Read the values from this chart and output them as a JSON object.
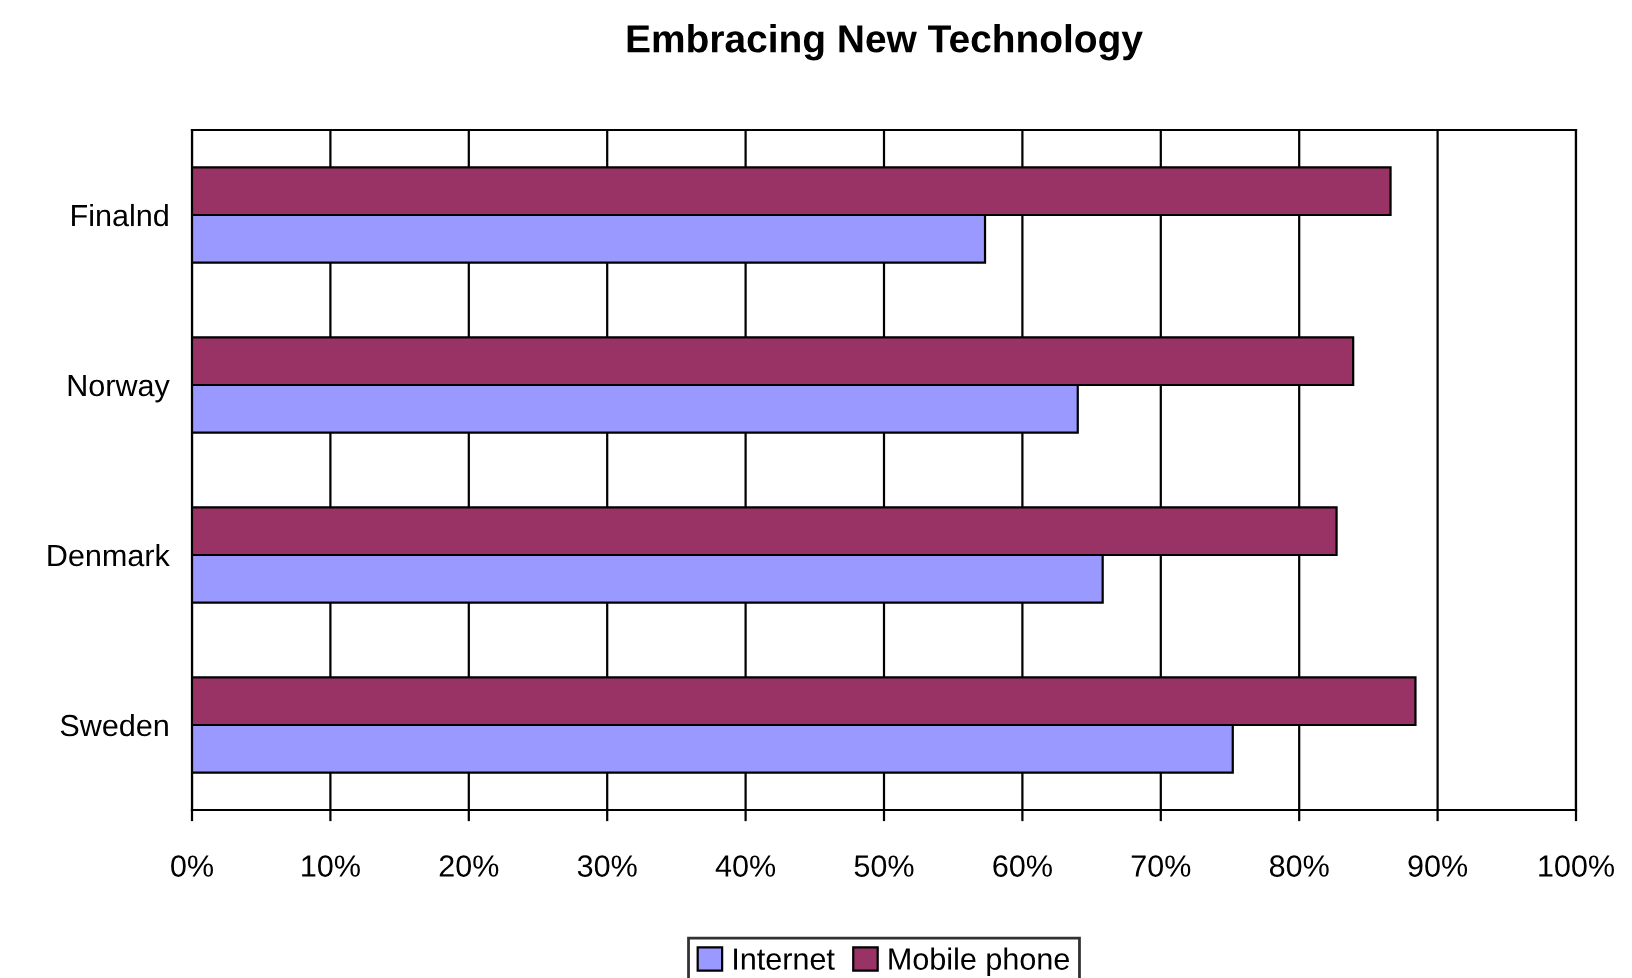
{
  "chart_data": {
    "type": "bar",
    "orientation": "horizontal",
    "title": "Embracing New Technology",
    "categories": [
      "Finalnd",
      "Norway",
      "Denmark",
      "Sweden"
    ],
    "series": [
      {
        "name": "Internet",
        "color": "#9999ff",
        "values": [
          57.3,
          64.0,
          65.8,
          75.2
        ]
      },
      {
        "name": "Mobile phone",
        "color": "#993366",
        "values": [
          86.6,
          83.9,
          82.7,
          88.4
        ]
      }
    ],
    "xlim": [
      0,
      100
    ],
    "xticks": [
      {
        "value": 0,
        "label": "0%"
      },
      {
        "value": 10,
        "label": "10%"
      },
      {
        "value": 20,
        "label": "20%"
      },
      {
        "value": 30,
        "label": "30%"
      },
      {
        "value": 40,
        "label": "40%"
      },
      {
        "value": 50,
        "label": "50%"
      },
      {
        "value": 60,
        "label": "60%"
      },
      {
        "value": 70,
        "label": "70%"
      },
      {
        "value": 80,
        "label": "80%"
      },
      {
        "value": 90,
        "label": "90%"
      },
      {
        "value": 100,
        "label": "100%"
      }
    ],
    "grid": "x",
    "legend": "bottom"
  }
}
